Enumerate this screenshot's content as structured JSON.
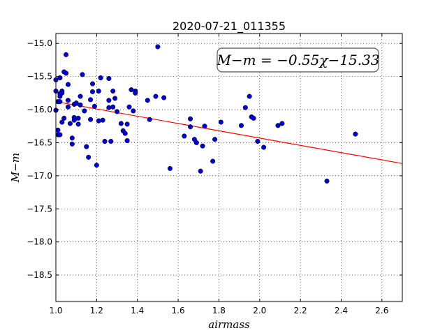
{
  "chart_data": {
    "type": "scatter",
    "title": "2020-07-21_011355",
    "xlabel": "airmass",
    "ylabel": "M−m",
    "xlim": [
      1.0,
      2.7
    ],
    "ylim": [
      -14.85,
      -18.9
    ],
    "y_inverted": true,
    "grid": true,
    "x_ticks": [
      1.0,
      1.2,
      1.4,
      1.6,
      1.8,
      2.0,
      2.2,
      2.4,
      2.6
    ],
    "x_tick_labels": [
      "1.0",
      "1.2",
      "1.4",
      "1.6",
      "1.8",
      "2.0",
      "2.2",
      "2.4",
      "2.6"
    ],
    "y_ticks": [
      -15.0,
      -15.5,
      -16.0,
      -16.5,
      -17.0,
      -17.5,
      -18.0,
      -18.5
    ],
    "y_tick_labels": [
      "−15.0",
      "−15.5",
      "−16.0",
      "−16.5",
      "−17.0",
      "−17.5",
      "−18.0",
      "−18.5"
    ],
    "annotation": "M−m = −0.55χ−15.33",
    "fit": {
      "slope": -0.55,
      "intercept": -15.33,
      "color": "#ff0000"
    },
    "point_color": "#0000cc",
    "x": [
      1.0,
      1.0,
      1.0,
      1.01,
      1.01,
      1.01,
      1.02,
      1.02,
      1.02,
      1.02,
      1.02,
      1.03,
      1.03,
      1.03,
      1.04,
      1.04,
      1.05,
      1.05,
      1.06,
      1.06,
      1.06,
      1.07,
      1.08,
      1.08,
      1.09,
      1.09,
      1.09,
      1.1,
      1.11,
      1.11,
      1.12,
      1.12,
      1.13,
      1.14,
      1.15,
      1.16,
      1.17,
      1.17,
      1.18,
      1.18,
      1.19,
      1.2,
      1.21,
      1.21,
      1.22,
      1.23,
      1.24,
      1.26,
      1.26,
      1.26,
      1.27,
      1.28,
      1.28,
      1.29,
      1.3,
      1.32,
      1.33,
      1.34,
      1.35,
      1.35,
      1.36,
      1.37,
      1.38,
      1.39,
      1.39,
      1.45,
      1.46,
      1.49,
      1.5,
      1.53,
      1.56,
      1.63,
      1.66,
      1.66,
      1.68,
      1.69,
      1.71,
      1.72,
      1.73,
      1.77,
      1.78,
      1.81,
      1.91,
      1.93,
      1.95,
      1.96,
      1.97,
      1.99,
      2.02,
      2.09,
      2.11,
      2.33,
      2.47
    ],
    "y": [
      -15.55,
      -15.72,
      -16.01,
      -15.88,
      -16.31,
      -16.38,
      -15.52,
      -15.76,
      -15.8,
      -15.88,
      -16.38,
      -15.72,
      -15.75,
      -16.19,
      -15.43,
      -16.13,
      -15.17,
      -15.45,
      -15.62,
      -15.86,
      -15.96,
      -16.21,
      -16.43,
      -16.52,
      -15.92,
      -16.12,
      -16.16,
      -15.9,
      -16.13,
      -16.22,
      -15.8,
      -15.93,
      -15.47,
      -16.02,
      -16.56,
      -16.72,
      -15.85,
      -16.15,
      -15.61,
      -15.73,
      -15.95,
      -16.84,
      -15.72,
      -16.17,
      -15.52,
      -16.16,
      -16.48,
      -15.53,
      -15.86,
      -15.97,
      -16.48,
      -15.72,
      -15.96,
      -15.83,
      -16.03,
      -16.21,
      -16.32,
      -16.36,
      -16.47,
      -16.22,
      -15.96,
      -15.7,
      -16.02,
      -15.72,
      -15.75,
      -15.86,
      -16.15,
      -15.8,
      -15.05,
      -15.82,
      -16.89,
      -16.4,
      -16.14,
      -16.26,
      -16.45,
      -16.5,
      -16.93,
      -16.55,
      -16.25,
      -16.78,
      -16.45,
      -16.19,
      -16.24,
      -15.97,
      -15.8,
      -16.11,
      -16.13,
      -16.48,
      -16.57,
      -16.24,
      -16.21,
      -17.08,
      -16.37
    ]
  }
}
